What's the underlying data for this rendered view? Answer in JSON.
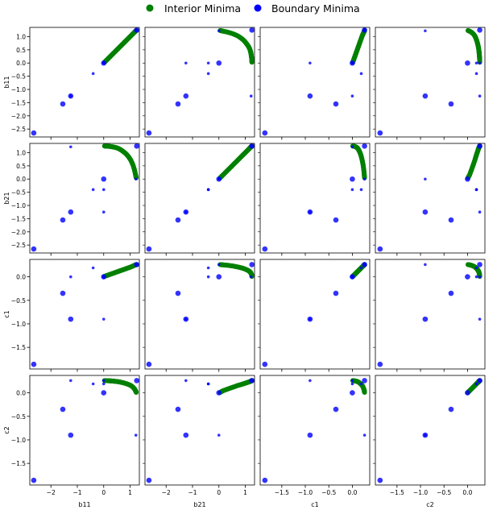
{
  "legend": {
    "placement": "top-center",
    "items": [
      {
        "label": "Interior Minima",
        "color": "#008000"
      },
      {
        "label": "Boundary Minima",
        "color": "#0000ff"
      }
    ]
  },
  "chart_data": {
    "type": "scatter",
    "layout": "pair-plot 4x4",
    "variables": [
      "b11",
      "b21",
      "c1",
      "c2"
    ],
    "ticks": {
      "b11": {
        "values": [
          -2.5,
          -2.0,
          -1.5,
          -1.0,
          -0.5,
          0.0,
          0.5,
          1.0
        ],
        "labels": [
          "−2.5",
          "−2.0",
          "−1.5",
          "−1.0",
          "−0.5",
          "0.0",
          "0.5",
          "1.0"
        ]
      },
      "b21": {
        "values": [
          -2.5,
          -2.0,
          -1.5,
          -1.0,
          -0.5,
          0.0,
          0.5,
          1.0
        ],
        "labels": [
          "−2.5",
          "−2.0",
          "−1.5",
          "−1.0",
          "−0.5",
          "0.0",
          "0.5",
          "1.0"
        ]
      },
      "c1": {
        "values": [
          -1.5,
          -1.0,
          -0.5,
          0.0
        ],
        "labels": [
          "−1.5",
          "−1.0",
          "−0.5",
          "0.0"
        ]
      },
      "c2": {
        "values": [
          -1.5,
          -1.0,
          -0.5,
          0.0
        ],
        "labels": [
          "−1.5",
          "−1.0",
          "−0.5",
          "0.0"
        ]
      }
    },
    "xticks": {
      "b11": {
        "values": [
          -2,
          -1,
          0,
          1
        ],
        "labels": [
          "−2",
          "−1",
          "0",
          "1"
        ]
      },
      "b21": {
        "values": [
          -2,
          -1,
          0,
          1
        ],
        "labels": [
          "−2",
          "−1",
          "0",
          "1"
        ]
      },
      "c1": {
        "values": [
          -1.5,
          -1.0,
          -0.5,
          0.0
        ],
        "labels": [
          "−1.5",
          "−1.0",
          "−0.5",
          "0.0"
        ]
      },
      "c2": {
        "values": [
          -1.5,
          -1.0,
          -0.5,
          0.0
        ],
        "labels": [
          "−1.5",
          "−1.0",
          "−0.5",
          "0.0"
        ]
      }
    },
    "limits": {
      "b11": [
        -2.8,
        1.35
      ],
      "b21": [
        -2.8,
        1.35
      ],
      "c1": [
        -1.96,
        0.37
      ],
      "c2": [
        -1.96,
        0.37
      ]
    },
    "series": [
      {
        "name": "Interior Minima",
        "color": "#008000",
        "points": [
          {
            "b11": 0.03,
            "b21": 1.25,
            "c1": 0.01,
            "c2": 0.26
          },
          {
            "b11": 0.13,
            "b21": 1.245,
            "c1": 0.03,
            "c2": 0.258
          },
          {
            "b11": 0.23,
            "b21": 1.235,
            "c1": 0.05,
            "c2": 0.255
          },
          {
            "b11": 0.33,
            "b21": 1.22,
            "c1": 0.07,
            "c2": 0.25
          },
          {
            "b11": 0.43,
            "b21": 1.2,
            "c1": 0.09,
            "c2": 0.245
          },
          {
            "b11": 0.53,
            "b21": 1.17,
            "c1": 0.11,
            "c2": 0.238
          },
          {
            "b11": 0.63,
            "b21": 1.12,
            "c1": 0.13,
            "c2": 0.228
          },
          {
            "b11": 0.73,
            "b21": 1.05,
            "c1": 0.15,
            "c2": 0.215
          },
          {
            "b11": 0.83,
            "b21": 0.97,
            "c1": 0.17,
            "c2": 0.2
          },
          {
            "b11": 0.93,
            "b21": 0.86,
            "c1": 0.19,
            "c2": 0.18
          },
          {
            "b11": 1.03,
            "b21": 0.71,
            "c1": 0.21,
            "c2": 0.155
          },
          {
            "b11": 1.11,
            "b21": 0.53,
            "c1": 0.23,
            "c2": 0.12
          },
          {
            "b11": 1.17,
            "b21": 0.33,
            "c1": 0.245,
            "c2": 0.08
          },
          {
            "b11": 1.21,
            "b21": 0.14,
            "c1": 0.255,
            "c2": 0.04
          },
          {
            "b11": 1.23,
            "b21": 0.05,
            "c1": 0.26,
            "c2": 0.01
          }
        ]
      },
      {
        "name": "Boundary Minima",
        "color": "#0000ff",
        "points": [
          {
            "b11": 1.25,
            "b21": 1.25,
            "c1": 0.26,
            "c2": 0.26,
            "size": "large"
          },
          {
            "b11": 0.0,
            "b21": 0.0,
            "c1": 0.0,
            "c2": 0.0,
            "size": "large"
          },
          {
            "b11": -2.65,
            "b21": -2.65,
            "c1": -1.86,
            "c2": -1.86,
            "size": "large"
          },
          {
            "b11": -1.55,
            "b21": -1.55,
            "c1": -0.35,
            "c2": -0.35,
            "size": "large"
          },
          {
            "b11": -1.25,
            "b21": -1.25,
            "c1": -0.9,
            "c2": -0.9,
            "size": "large"
          },
          {
            "b11": -1.25,
            "b21": 1.22,
            "c1": 0.0,
            "c2": 0.26,
            "size": "small"
          },
          {
            "b11": -0.4,
            "b21": -0.4,
            "c1": 0.19,
            "c2": 0.19,
            "size": "small"
          },
          {
            "b11": 0.0,
            "b21": -1.25,
            "c1": -0.9,
            "c2": 0.26,
            "size": "small"
          },
          {
            "b11": 1.22,
            "b21": 0.0,
            "c1": 0.26,
            "c2": -0.9,
            "size": "small"
          },
          {
            "b11": 0.0,
            "b21": -0.4,
            "c1": 0.0,
            "c2": 0.19,
            "size": "small"
          }
        ]
      }
    ],
    "grid": false
  }
}
